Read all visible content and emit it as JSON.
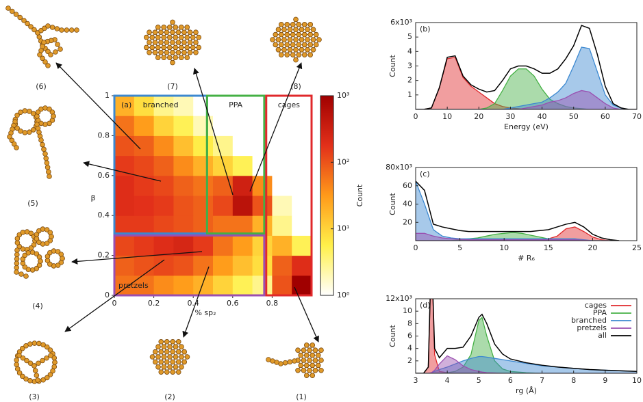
{
  "chart_data": [
    {
      "type": "heatmap",
      "panel": "(a)",
      "xlabel": "% sp₂",
      "ylabel": "β",
      "xlim": [
        0,
        1
      ],
      "ylim": [
        0,
        1
      ],
      "xticks": [
        0,
        0.2,
        0.4,
        0.6,
        0.8
      ],
      "yticks": [
        0,
        0.2,
        0.4,
        0.6,
        0.8,
        1
      ],
      "x_bins": [
        0,
        0.1,
        0.2,
        0.3,
        0.4,
        0.5,
        0.6,
        0.7,
        0.8,
        0.9,
        1
      ],
      "y_bins": [
        0,
        0.1,
        0.2,
        0.3,
        0.4,
        0.5,
        0.6,
        0.7,
        0.8,
        0.9,
        1
      ],
      "counts": [
        [
          60,
          60,
          40,
          30,
          20,
          10,
          5,
          3,
          100,
          1000
        ],
        [
          80,
          100,
          120,
          100,
          60,
          30,
          15,
          8,
          80,
          200
        ],
        [
          120,
          150,
          200,
          250,
          150,
          60,
          30,
          10,
          20,
          5
        ],
        [
          150,
          150,
          120,
          100,
          80,
          60,
          60,
          20,
          3,
          1
        ],
        [
          200,
          180,
          150,
          100,
          80,
          120,
          500,
          100,
          2,
          0
        ],
        [
          200,
          150,
          120,
          80,
          60,
          80,
          300,
          40,
          1,
          0
        ],
        [
          150,
          120,
          80,
          40,
          20,
          10,
          5,
          1,
          0,
          0
        ],
        [
          100,
          80,
          40,
          15,
          6,
          3,
          1,
          0,
          0,
          0
        ],
        [
          60,
          30,
          10,
          5,
          2,
          1,
          0,
          0,
          0,
          0
        ],
        [
          20,
          8,
          3,
          2,
          1,
          0,
          0,
          0,
          0,
          0
        ]
      ],
      "colorbar_label": "Count",
      "clim": [
        1,
        1000
      ],
      "log_scale": true,
      "colormap": [
        "#ffffff",
        "#fff04a",
        "#ff9a1a",
        "#e2301a",
        "#a00000"
      ],
      "cticks": [
        {
          "value": 1,
          "label": "10⁰"
        },
        {
          "value": 10,
          "label": "10¹"
        },
        {
          "value": 100,
          "label": "10²"
        },
        {
          "value": 1000,
          "label": "10³"
        }
      ],
      "regions": [
        {
          "label": "branched",
          "color": "#3b88d0",
          "x": [
            0,
            0.47
          ],
          "y": [
            0.31,
            1
          ]
        },
        {
          "label": "PPA",
          "color": "#44b044",
          "x": [
            0.47,
            0.76
          ],
          "y": [
            0.31,
            1
          ]
        },
        {
          "label": "cages",
          "color": "#e0282b",
          "x": [
            0.77,
            1
          ],
          "y": [
            0,
            1
          ]
        },
        {
          "label": "pretzels",
          "color": "#9a4fb0",
          "x": [
            0,
            0.76
          ],
          "y": [
            0,
            0.3
          ]
        }
      ]
    },
    {
      "type": "area",
      "panel": "(b)",
      "xlabel": "Energy (eV)",
      "ylabel": "Count",
      "xlim": [
        0,
        70
      ],
      "ylim": [
        0,
        6
      ],
      "xticks": [
        0,
        10,
        20,
        30,
        40,
        50,
        60,
        70
      ],
      "yticks": [
        1,
        2,
        3,
        4,
        5,
        {
          "value": 6,
          "label": "6x10³"
        }
      ],
      "x": [
        0,
        2.5,
        5,
        7.5,
        10,
        12.5,
        15,
        17.5,
        20,
        22.5,
        25,
        27.5,
        30,
        32.5,
        35,
        37.5,
        40,
        42.5,
        45,
        47.5,
        50,
        52.5,
        55,
        57.5,
        60,
        62.5,
        65,
        67.5,
        70
      ],
      "series": [
        {
          "color": "#e0282b",
          "style": "area",
          "values": [
            0,
            0,
            0.1,
            1.5,
            3.5,
            3.6,
            2.2,
            1.6,
            1.2,
            0.8,
            0.4,
            0.2,
            0.1,
            0.05,
            0,
            0,
            0,
            0,
            0,
            0,
            0,
            0,
            0,
            0,
            0,
            0,
            0,
            0,
            0
          ]
        },
        {
          "color": "#44b044",
          "style": "area",
          "values": [
            0,
            0,
            0,
            0,
            0,
            0,
            0,
            0,
            0,
            0.1,
            0.4,
            1.3,
            2.3,
            2.8,
            2.8,
            2.3,
            1.4,
            0.7,
            0.4,
            0.2,
            0.1,
            0.05,
            0,
            0,
            0,
            0,
            0,
            0,
            0
          ]
        },
        {
          "color": "#3b88d0",
          "style": "area",
          "values": [
            0,
            0,
            0,
            0,
            0,
            0,
            0,
            0,
            0,
            0,
            0,
            0,
            0.1,
            0.2,
            0.3,
            0.4,
            0.5,
            0.8,
            1.2,
            1.8,
            3,
            4.3,
            4.2,
            2.6,
            1,
            0.3,
            0.1,
            0,
            0
          ]
        },
        {
          "color": "#9a4fb0",
          "style": "area",
          "values": [
            0,
            0,
            0,
            0,
            0,
            0,
            0,
            0,
            0,
            0,
            0,
            0,
            0,
            0,
            0.1,
            0.2,
            0.3,
            0.5,
            0.6,
            0.8,
            1.1,
            1.3,
            1.2,
            0.8,
            0.4,
            0.1,
            0,
            0,
            0
          ]
        },
        {
          "color": "#000000",
          "style": "line",
          "values": [
            0,
            0,
            0.1,
            1.5,
            3.6,
            3.7,
            2.3,
            1.7,
            1.4,
            1.2,
            1.3,
            2,
            2.8,
            3,
            3,
            2.8,
            2.5,
            2.5,
            2.8,
            3.5,
            4.4,
            5.8,
            5.6,
            3.8,
            1.6,
            0.4,
            0.1,
            0,
            0
          ]
        }
      ]
    },
    {
      "type": "area",
      "panel": "(c)",
      "xlabel": "# R₆",
      "ylabel": "Count",
      "xlim": [
        0,
        25
      ],
      "ylim": [
        0,
        80
      ],
      "xticks": [
        0,
        5,
        10,
        15,
        20,
        25
      ],
      "yticks": [
        20,
        40,
        60,
        {
          "value": 80,
          "label": "80x10³"
        }
      ],
      "x": [
        0,
        1,
        2,
        3,
        4,
        5,
        6,
        7,
        8,
        9,
        10,
        11,
        12,
        13,
        14,
        15,
        16,
        17,
        18,
        19,
        20,
        21,
        22,
        23
      ],
      "series": [
        {
          "color": "#e0282b",
          "style": "area",
          "values": [
            0,
            0,
            0,
            0,
            0,
            0,
            0,
            0,
            0,
            0,
            0,
            0,
            0,
            0,
            1,
            2,
            5,
            13,
            15,
            10,
            4,
            1,
            0,
            0
          ]
        },
        {
          "color": "#44b044",
          "style": "area",
          "values": [
            0,
            0,
            0,
            0,
            0,
            1,
            2,
            3,
            5,
            7,
            8,
            9,
            8,
            6,
            4,
            2,
            1,
            0,
            0,
            0,
            0,
            0,
            0,
            0
          ]
        },
        {
          "color": "#3b88d0",
          "style": "area",
          "values": [
            65,
            40,
            12,
            5,
            3,
            2,
            2,
            2,
            2,
            2,
            2,
            2,
            2,
            2,
            2,
            2,
            2,
            2,
            2,
            1,
            0,
            0,
            0,
            0
          ]
        },
        {
          "color": "#9a4fb0",
          "style": "area",
          "values": [
            8,
            8,
            5,
            3,
            2,
            1.5,
            1,
            1,
            1,
            1,
            1,
            1,
            1,
            1,
            1,
            1,
            1,
            1,
            1,
            0.5,
            0,
            0,
            0,
            0
          ]
        },
        {
          "color": "#000000",
          "style": "line",
          "values": [
            65,
            55,
            18,
            15,
            13,
            11,
            10,
            10,
            10,
            10,
            10,
            10,
            10,
            10,
            11,
            12,
            15,
            18,
            20,
            15,
            7,
            3,
            1,
            0
          ]
        }
      ]
    },
    {
      "type": "area",
      "panel": "(d)",
      "xlabel": "rg (Å)",
      "ylabel": "Count",
      "xlim": [
        3,
        10
      ],
      "ylim": [
        0,
        12
      ],
      "xticks": [
        3,
        4,
        5,
        6,
        7,
        8,
        9,
        10
      ],
      "yticks": [
        2,
        4,
        6,
        8,
        10,
        {
          "value": 12,
          "label": "12x10³"
        }
      ],
      "legend": "upper right",
      "x": [
        3,
        3.25,
        3.4,
        3.5,
        3.6,
        3.75,
        4,
        4.25,
        4.5,
        4.75,
        5,
        5.1,
        5.25,
        5.5,
        5.75,
        6,
        6.5,
        7,
        7.5,
        8,
        8.5,
        9,
        9.5,
        10
      ],
      "series": [
        {
          "name": "cages",
          "color": "#e0282b",
          "style": "area",
          "values": [
            0,
            0,
            1,
            20,
            3,
            0.3,
            0.1,
            0,
            0,
            0,
            0,
            0,
            0,
            0,
            0,
            0,
            0,
            0,
            0,
            0,
            0,
            0,
            0,
            0
          ]
        },
        {
          "name": "PPA",
          "color": "#44b044",
          "style": "area",
          "values": [
            0,
            0,
            0,
            0,
            0,
            0,
            0.1,
            0.3,
            1,
            3,
            8.5,
            9,
            6,
            2,
            0.7,
            0.3,
            0.1,
            0,
            0,
            0,
            0,
            0,
            0,
            0
          ]
        },
        {
          "name": "branched",
          "color": "#3b88d0",
          "style": "area",
          "values": [
            0,
            0,
            0,
            0.1,
            0.3,
            0.6,
            1,
            1.5,
            2,
            2.4,
            2.7,
            2.7,
            2.6,
            2.4,
            2.2,
            2,
            1.6,
            1.2,
            1,
            0.8,
            0.6,
            0.5,
            0.4,
            0.3
          ]
        },
        {
          "name": "pretzels",
          "color": "#9a4fb0",
          "style": "area",
          "values": [
            0,
            0,
            0,
            0.1,
            0.5,
            1.5,
            2.8,
            2.2,
            1.2,
            0.6,
            0.3,
            0.2,
            0.1,
            0.05,
            0,
            0,
            0,
            0,
            0,
            0,
            0,
            0,
            0,
            0
          ]
        },
        {
          "name": "all",
          "color": "#000000",
          "style": "line",
          "values": [
            0,
            0,
            1,
            20,
            4,
            2.5,
            4,
            4,
            4.2,
            6,
            9,
            9.5,
            8,
            4.7,
            3.1,
            2.3,
            1.7,
            1.3,
            1,
            0.8,
            0.6,
            0.5,
            0.4,
            0.3
          ]
        }
      ]
    }
  ],
  "structures": [
    "(1)",
    "(2)",
    "(3)",
    "(4)",
    "(5)",
    "(6)",
    "(7)",
    "(8)"
  ]
}
